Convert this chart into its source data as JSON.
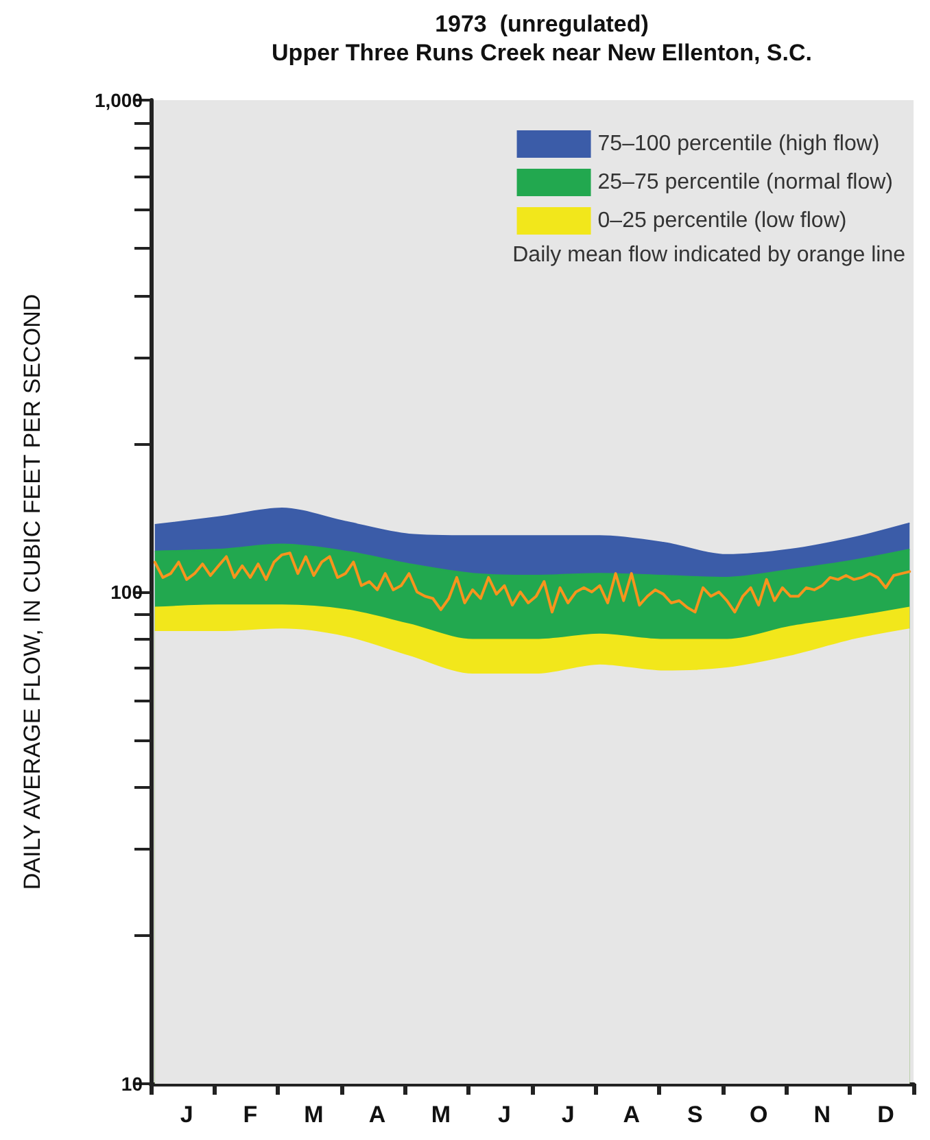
{
  "chart_data": {
    "type": "area",
    "title": "1973  (unregulated)",
    "subtitle": "Upper Three Runs Creek near New Ellenton, S.C.",
    "ylabel": "DAILY AVERAGE FLOW, IN CUBIC FEET PER SECOND",
    "categories": [
      null,
      null,
      null,
      null,
      "J",
      null,
      null,
      null,
      null,
      null,
      null,
      null,
      "F",
      null,
      null,
      null,
      null,
      null,
      null,
      null,
      "M",
      null,
      null,
      null,
      null,
      null,
      null,
      null,
      "A",
      null,
      null,
      null,
      null,
      null,
      null,
      null,
      "M",
      null,
      null,
      null,
      null,
      null,
      null,
      null,
      "J",
      null,
      null,
      null,
      null,
      null,
      null,
      null,
      "J",
      null,
      null,
      null,
      null,
      null,
      null,
      null,
      "A",
      null,
      null,
      null,
      null,
      null,
      null,
      null,
      "S",
      null,
      null,
      null,
      null,
      null,
      null,
      null,
      "O",
      null,
      null,
      null,
      null,
      null,
      null,
      null,
      "N",
      null,
      null,
      null,
      null,
      null,
      null,
      null,
      "D",
      null,
      null,
      null
    ],
    "ylim": [
      10,
      1000
    ],
    "log": "y",
    "yticks": [
      10,
      {
        "value": 20,
        "label": null
      },
      {
        "value": 30,
        "label": null
      },
      {
        "value": 40,
        "label": null
      },
      {
        "value": 50,
        "label": null
      },
      {
        "value": 60,
        "label": null
      },
      {
        "value": 70,
        "label": null
      },
      {
        "value": 80,
        "label": null
      },
      {
        "value": 90,
        "label": null
      },
      100,
      {
        "value": 200,
        "label": null
      },
      {
        "value": 300,
        "label": null
      },
      {
        "value": 400,
        "label": null
      },
      {
        "value": 500,
        "label": null
      },
      {
        "value": 600,
        "label": null
      },
      {
        "value": 700,
        "label": null
      },
      {
        "value": 800,
        "label": null
      },
      {
        "value": 900,
        "label": null
      },
      {
        "value": 1000,
        "label": "1,000"
      }
    ],
    "grid": false,
    "legend": "top right",
    "marker": "none",
    "annotations": [
      "Daily mean flow indicated by orange line"
    ],
    "series": [
      {
        "name": "75–100 percentile (high flow)",
        "color": "#3b5ca8",
        "values": [
          137,
          null,
          null,
          null,
          null,
          null,
          null,
          null,
          142,
          null,
          null,
          null,
          null,
          null,
          null,
          null,
          148,
          null,
          null,
          null,
          null,
          null,
          null,
          null,
          139,
          null,
          null,
          null,
          null,
          null,
          null,
          null,
          131,
          null,
          null,
          null,
          null,
          null,
          null,
          null,
          130,
          null,
          null,
          null,
          null,
          null,
          null,
          null,
          130,
          null,
          null,
          null,
          null,
          null,
          null,
          null,
          130,
          null,
          null,
          null,
          null,
          null,
          null,
          null,
          126,
          null,
          null,
          null,
          null,
          null,
          null,
          null,
          119,
          null,
          null,
          null,
          null,
          null,
          null,
          null,
          122,
          null,
          null,
          null,
          null,
          null,
          null,
          null,
          129,
          null,
          null,
          null,
          null,
          null,
          null,
          138
        ]
      },
      {
        "name": "25–75 percentile (normal flow)",
        "color": "#22a84f",
        "values": [
          121,
          null,
          null,
          null,
          null,
          null,
          null,
          null,
          122,
          null,
          null,
          null,
          null,
          null,
          null,
          null,
          125,
          null,
          null,
          null,
          null,
          null,
          null,
          null,
          121,
          null,
          null,
          null,
          null,
          null,
          null,
          null,
          114,
          null,
          null,
          null,
          null,
          null,
          null,
          null,
          109,
          null,
          null,
          null,
          null,
          null,
          null,
          null,
          108,
          null,
          null,
          null,
          null,
          null,
          null,
          null,
          109,
          null,
          null,
          null,
          null,
          null,
          null,
          null,
          108,
          null,
          null,
          null,
          null,
          null,
          null,
          null,
          107,
          null,
          null,
          null,
          null,
          null,
          null,
          null,
          111,
          null,
          null,
          null,
          null,
          null,
          null,
          null,
          116,
          null,
          null,
          null,
          null,
          null,
          null,
          122
        ]
      },
      {
        "name": "0–25 percentile (low flow)",
        "color": "#f2e71b",
        "values": [
          93,
          null,
          null,
          null,
          null,
          null,
          null,
          null,
          94,
          null,
          null,
          null,
          null,
          null,
          null,
          null,
          94,
          null,
          null,
          null,
          null,
          null,
          null,
          null,
          92,
          null,
          null,
          null,
          null,
          null,
          null,
          null,
          86,
          null,
          null,
          null,
          null,
          null,
          null,
          null,
          80,
          null,
          null,
          null,
          null,
          null,
          null,
          null,
          80,
          null,
          null,
          null,
          null,
          null,
          null,
          null,
          82,
          null,
          null,
          null,
          null,
          null,
          null,
          null,
          80,
          null,
          null,
          null,
          null,
          null,
          null,
          null,
          80,
          null,
          null,
          null,
          null,
          null,
          null,
          null,
          85,
          null,
          null,
          null,
          null,
          null,
          null,
          null,
          89,
          null,
          null,
          null,
          null,
          null,
          null,
          93
        ]
      },
      {
        "color": "#e6e6e6",
        "values": [
          83,
          null,
          null,
          null,
          null,
          null,
          null,
          null,
          83,
          null,
          null,
          null,
          null,
          null,
          null,
          null,
          84,
          null,
          null,
          null,
          null,
          null,
          null,
          null,
          81,
          null,
          null,
          null,
          null,
          null,
          null,
          null,
          74,
          null,
          null,
          null,
          null,
          null,
          null,
          null,
          68,
          null,
          null,
          null,
          null,
          null,
          null,
          null,
          68,
          null,
          null,
          null,
          null,
          null,
          null,
          null,
          71,
          null,
          null,
          null,
          null,
          null,
          null,
          null,
          69,
          null,
          null,
          null,
          null,
          null,
          null,
          null,
          70,
          null,
          null,
          null,
          null,
          null,
          null,
          null,
          74,
          null,
          null,
          null,
          null,
          null,
          null,
          null,
          80,
          null,
          null,
          null,
          null,
          null,
          null,
          84
        ]
      },
      {
        "type": "line",
        "color": "#f7941d",
        "line_style": "solid",
        "values": [
          115,
          107,
          109,
          115,
          106,
          109,
          114,
          108,
          113,
          118,
          107,
          113,
          107,
          114,
          106,
          115,
          119,
          120,
          109,
          118,
          108,
          115,
          118,
          107,
          109,
          115,
          103,
          105,
          101,
          109,
          101,
          103,
          109,
          100,
          98,
          97,
          92,
          97,
          107,
          95,
          101,
          97,
          107,
          99,
          103,
          94,
          100,
          95,
          98,
          105,
          91,
          102,
          95,
          100,
          102,
          100,
          103,
          95,
          109,
          96,
          109,
          94,
          98,
          101,
          99,
          95,
          96,
          93,
          91,
          102,
          98,
          100,
          96,
          91,
          98,
          102,
          94,
          106,
          96,
          102,
          98,
          98,
          102,
          101,
          103,
          107,
          106,
          108,
          106,
          107,
          109,
          107,
          102,
          108,
          109,
          110
        ]
      }
    ]
  }
}
